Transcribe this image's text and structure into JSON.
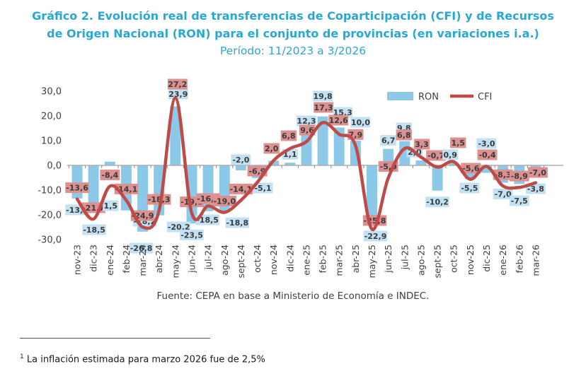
{
  "title_line1": "Gráfico 2. Evolución real de transferencias de Coparticipación (CFI) y de Recursos",
  "title_line2": "de Origen Nacional (RON) para el conjunto de provincias (en variaciones i.a.)",
  "period_line": "Período: 11/2023 a 3/2026",
  "source": "Fuente: CEPA en base a Ministerio de Economía e INDEC.",
  "footnote_sup": "1",
  "footnote_text": " La inflación estimada para marzo 2026 fue de 2,5%",
  "legend": {
    "ron": "RON",
    "cfi": "CFI"
  },
  "colors": {
    "title_teal": "#29A8D3",
    "bar_blue": "#8CC9E8",
    "label_blue_bg": "#C2E2F4",
    "label_red_bg": "#DD9090",
    "line_red": "#BE4B48",
    "axis_gray": "#ADADAD",
    "text_dark": "#3B3B3B"
  },
  "chart_data": {
    "type": "bar",
    "subtype": "bar+line combo",
    "title": "Evolución real de transferencias CFI y RON (variaciones i.a.)",
    "xlabel": "",
    "ylabel": "",
    "ylim": [
      -30,
      30
    ],
    "grid": false,
    "legend_position": "top-right",
    "ytick_values": [
      30,
      20,
      10,
      0,
      -10,
      -20,
      -30
    ],
    "ytick_labels": [
      "30,0",
      "20,0",
      "10,0",
      "0,0",
      "-10,0",
      "-20,0",
      "-30,0"
    ],
    "categories": [
      "nov-23",
      "dic-23",
      "ene-24",
      "feb-24",
      "mar-24",
      "abr-24",
      "may-24",
      "jun-24",
      "jul-24",
      "ago-24",
      "sept-24",
      "oct-24",
      "nov-24",
      "dic-24",
      "ene-25",
      "feb-25",
      "mar-25",
      "abr-25",
      "may-25",
      "jun-25",
      "jul-25",
      "ago-25",
      "sept-25",
      "oct-25",
      "nov-25",
      "dic-25",
      "ene-26",
      "feb-26",
      "mar-26"
    ],
    "series": [
      {
        "name": "RON",
        "type": "bar",
        "values": [
          -13.4,
          -18.5,
          1.5,
          -18.2,
          -26.8,
          -20.2,
          23.9,
          -23.5,
          -18.5,
          -18.8,
          -2.0,
          -5.1,
          1.9,
          1.1,
          12.3,
          19.8,
          15.3,
          10.0,
          -22.9,
          6.7,
          9.8,
          2.0,
          -10.2,
          0.9,
          -5.5,
          -3.0,
          -7.0,
          -7.5,
          -3.8
        ],
        "labels": [
          "-13,4",
          "-18,5",
          "1,5",
          "-18,2",
          "-26,8",
          "-20,2",
          "23,9",
          "-23,5",
          "-18,5",
          "-18,8",
          "-2,0",
          "-5,1",
          "",
          "1,1",
          "12,3",
          "19,8",
          "15,3",
          "10,0",
          "-22,9",
          "6,7",
          "9,8",
          "2,0",
          "-10,2",
          "0,9",
          "-5,5",
          "-3,0",
          "-7,0",
          "-7,5",
          "-3,8"
        ]
      },
      {
        "name": "CFI",
        "type": "line",
        "values": [
          -13.6,
          -21.7,
          -8.4,
          -14.1,
          -24.9,
          -18.3,
          27.2,
          -19.3,
          -16.4,
          -19.0,
          -14.1,
          -6.9,
          2.0,
          6.8,
          9.6,
          17.3,
          12.6,
          7.9,
          -25.8,
          -5.0,
          6.8,
          3.3,
          -0.7,
          1.5,
          -5.6,
          -0.4,
          -8.3,
          -8.9,
          -7.0
        ],
        "labels": [
          "-13,6",
          "-21,7",
          "-8,4",
          "-14,1",
          "-24,9",
          "-18,3",
          "27,2",
          "-19,3",
          "-16,4",
          "-19,0",
          "-14,1",
          "-6,9",
          "2,0",
          "6,8",
          "9,6",
          "17,3",
          "12,6",
          "7,9",
          "-25,8",
          "-5,0",
          "6,8",
          "3,3",
          "-0,7",
          "1,5",
          "-5,6",
          "-0,4",
          "-8,3",
          "-8,9",
          "-7,0"
        ]
      }
    ]
  }
}
